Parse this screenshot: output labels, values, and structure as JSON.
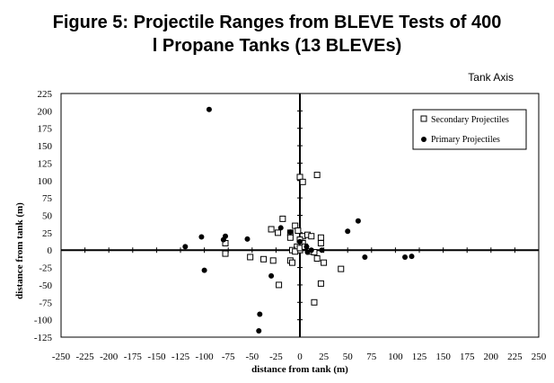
{
  "chart_data": {
    "type": "scatter",
    "title_line1": "Figure 5: Projectile Ranges from BLEVE Tests of 400",
    "title_line2": "l Propane Tanks (13 BLEVEs)",
    "annotation": "Tank Axis",
    "xlabel": "distance from tank (m)",
    "ylabel": "distance from tank (m)",
    "xlim": [
      -250,
      250
    ],
    "ylim": [
      -125,
      225
    ],
    "xtick_step": 25,
    "ytick_step": 25,
    "legend_position": "top-right",
    "series": [
      {
        "name": "Secondary Projectiles",
        "marker": "open-square",
        "color": "#000000",
        "points": [
          [
            0,
            105
          ],
          [
            3,
            98
          ],
          [
            18,
            108
          ],
          [
            -18,
            45
          ],
          [
            -5,
            35
          ],
          [
            -30,
            30
          ],
          [
            -23,
            25
          ],
          [
            -10,
            25
          ],
          [
            -2,
            28
          ],
          [
            3,
            20
          ],
          [
            8,
            22
          ],
          [
            12,
            20
          ],
          [
            22,
            18
          ],
          [
            -10,
            18
          ],
          [
            0,
            15
          ],
          [
            3,
            10
          ],
          [
            -3,
            5
          ],
          [
            22,
            10
          ],
          [
            -78,
            10
          ],
          [
            -78,
            -5
          ],
          [
            -8,
            0
          ],
          [
            0,
            0
          ],
          [
            -5,
            -2
          ],
          [
            10,
            -2
          ],
          [
            15,
            -3
          ],
          [
            -52,
            -10
          ],
          [
            -38,
            -13
          ],
          [
            -28,
            -15
          ],
          [
            -10,
            -15
          ],
          [
            -8,
            -18
          ],
          [
            18,
            -12
          ],
          [
            25,
            -18
          ],
          [
            22,
            -48
          ],
          [
            -22,
            -50
          ],
          [
            43,
            -27
          ],
          [
            15,
            -75
          ],
          [
            0,
            3
          ],
          [
            5,
            5
          ]
        ]
      },
      {
        "name": "Primary Projectiles",
        "marker": "filled-circle",
        "color": "#000000",
        "points": [
          [
            -95,
            202
          ],
          [
            -120,
            5
          ],
          [
            -103,
            19
          ],
          [
            -80,
            15
          ],
          [
            -78,
            20
          ],
          [
            -55,
            16
          ],
          [
            -100,
            -29
          ],
          [
            -20,
            32
          ],
          [
            -10,
            26
          ],
          [
            -30,
            -37
          ],
          [
            -42,
            -92
          ],
          [
            -43,
            -116
          ],
          [
            0,
            12
          ],
          [
            7,
            5
          ],
          [
            8,
            -3
          ],
          [
            12,
            0
          ],
          [
            23,
            0
          ],
          [
            50,
            27
          ],
          [
            61,
            42
          ],
          [
            68,
            -10
          ],
          [
            110,
            -10
          ],
          [
            117,
            -9
          ]
        ]
      }
    ]
  }
}
